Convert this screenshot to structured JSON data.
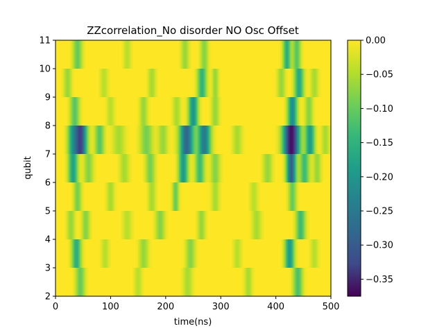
{
  "chart_data": {
    "type": "heatmap",
    "title": "ZZcorrelation_No disorder NO Osc Offset",
    "xlabel": "time(ns)",
    "ylabel": "qubit",
    "xlim": [
      0,
      500
    ],
    "ylim": [
      2,
      11
    ],
    "x_ticks": [
      "0",
      "100",
      "200",
      "300",
      "400",
      "500"
    ],
    "y_ticks": [
      "2",
      "3",
      "4",
      "5",
      "6",
      "7",
      "8",
      "9",
      "10",
      "11"
    ],
    "colormap": "viridis",
    "colorbar": {
      "vmin": -0.375,
      "vmax": 0.0,
      "ticks": [
        0.0,
        -0.05,
        -0.1,
        -0.15,
        -0.2,
        -0.25,
        -0.3,
        -0.35
      ],
      "tick_labels": [
        "0.00",
        "−0.05",
        "−0.10",
        "−0.15",
        "−0.20",
        "−0.25",
        "−0.30",
        "−0.35"
      ]
    },
    "rows": [
      {
        "y0": 2,
        "y1": 3,
        "features": [
          [
            45,
            6,
            -0.09
          ],
          [
            150,
            5,
            -0.04
          ],
          [
            240,
            6,
            -0.05
          ],
          [
            350,
            5,
            -0.05
          ],
          [
            440,
            6,
            -0.11
          ]
        ]
      },
      {
        "y0": 3,
        "y1": 4,
        "features": [
          [
            38,
            6,
            -0.14
          ],
          [
            90,
            5,
            -0.04
          ],
          [
            160,
            6,
            -0.06
          ],
          [
            245,
            6,
            -0.07
          ],
          [
            330,
            5,
            -0.04
          ],
          [
            425,
            6,
            -0.17
          ],
          [
            470,
            5,
            -0.04
          ]
        ]
      },
      {
        "y0": 4,
        "y1": 5,
        "features": [
          [
            28,
            5,
            -0.06
          ],
          [
            55,
            5,
            -0.07
          ],
          [
            130,
            6,
            -0.04
          ],
          [
            190,
            6,
            -0.07
          ],
          [
            265,
            5,
            -0.06
          ],
          [
            365,
            6,
            -0.05
          ],
          [
            445,
            6,
            -0.12
          ]
        ]
      },
      {
        "y0": 5,
        "y1": 6,
        "features": [
          [
            40,
            5,
            -0.08
          ],
          [
            100,
            5,
            -0.05
          ],
          [
            175,
            5,
            -0.05
          ],
          [
            218,
            4,
            -0.09
          ],
          [
            290,
            5,
            -0.05
          ],
          [
            360,
            5,
            -0.04
          ],
          [
            430,
            5,
            -0.09
          ]
        ]
      },
      {
        "y0": 6,
        "y1": 7,
        "features": [
          [
            32,
            6,
            -0.16
          ],
          [
            60,
            6,
            -0.07
          ],
          [
            125,
            6,
            -0.05
          ],
          [
            172,
            6,
            -0.08
          ],
          [
            232,
            6,
            -0.17
          ],
          [
            262,
            6,
            -0.12
          ],
          [
            290,
            6,
            -0.07
          ],
          [
            385,
            6,
            -0.06
          ],
          [
            428,
            6,
            -0.26
          ],
          [
            452,
            6,
            -0.12
          ],
          [
            475,
            5,
            -0.06
          ]
        ]
      },
      {
        "y0": 7,
        "y1": 8,
        "features": [
          [
            30,
            6,
            -0.12
          ],
          [
            45,
            8,
            -0.3
          ],
          [
            80,
            6,
            -0.1
          ],
          [
            115,
            8,
            -0.05
          ],
          [
            165,
            8,
            -0.08
          ],
          [
            195,
            6,
            -0.06
          ],
          [
            238,
            9,
            -0.25
          ],
          [
            270,
            8,
            -0.22
          ],
          [
            330,
            6,
            -0.05
          ],
          [
            428,
            10,
            -0.36
          ],
          [
            462,
            6,
            -0.17
          ],
          [
            490,
            5,
            -0.05
          ]
        ]
      },
      {
        "y0": 8,
        "y1": 9,
        "features": [
          [
            35,
            6,
            -0.1
          ],
          [
            100,
            5,
            -0.04
          ],
          [
            160,
            5,
            -0.06
          ],
          [
            220,
            5,
            -0.05
          ],
          [
            250,
            6,
            -0.18
          ],
          [
            290,
            5,
            -0.06
          ],
          [
            430,
            6,
            -0.19
          ],
          [
            460,
            5,
            -0.07
          ]
        ]
      },
      {
        "y0": 9,
        "y1": 10,
        "features": [
          [
            22,
            5,
            -0.06
          ],
          [
            88,
            5,
            -0.04
          ],
          [
            175,
            5,
            -0.05
          ],
          [
            266,
            6,
            -0.13
          ],
          [
            290,
            4,
            -0.06
          ],
          [
            410,
            5,
            -0.06
          ],
          [
            442,
            6,
            -0.15
          ],
          [
            470,
            5,
            -0.05
          ]
        ]
      },
      {
        "y0": 10,
        "y1": 11,
        "features": [
          [
            40,
            6,
            -0.09
          ],
          [
            130,
            5,
            -0.04
          ],
          [
            235,
            5,
            -0.06
          ],
          [
            270,
            5,
            -0.07
          ],
          [
            420,
            5,
            -0.14
          ],
          [
            438,
            5,
            -0.1
          ]
        ]
      }
    ]
  }
}
